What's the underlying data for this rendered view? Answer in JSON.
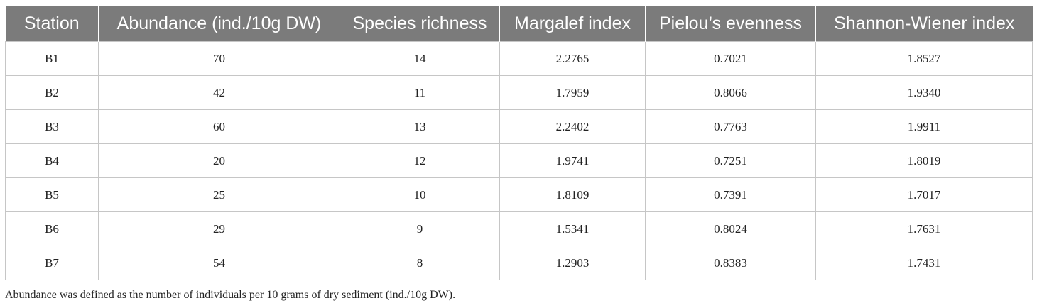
{
  "table": {
    "headers": [
      "Station",
      "Abundance (ind./10g DW)",
      "Species richness",
      "Margalef index",
      "Pielou’s evenness",
      "Shannon-Wiener index"
    ],
    "rows": [
      [
        "B1",
        "70",
        "14",
        "2.2765",
        "0.7021",
        "1.8527"
      ],
      [
        "B2",
        "42",
        "11",
        "1.7959",
        "0.8066",
        "1.9340"
      ],
      [
        "B3",
        "60",
        "13",
        "2.2402",
        "0.7763",
        "1.9911"
      ],
      [
        "B4",
        "20",
        "12",
        "1.9741",
        "0.7251",
        "1.8019"
      ],
      [
        "B5",
        "25",
        "10",
        "1.8109",
        "0.7391",
        "1.7017"
      ],
      [
        "B6",
        "29",
        "9",
        "1.5341",
        "0.8024",
        "1.7631"
      ],
      [
        "B7",
        "54",
        "8",
        "1.2903",
        "0.8383",
        "1.7431"
      ]
    ]
  },
  "footnote": "Abundance was defined as the number of individuals per 10 grams of dry sediment (ind./10g DW).",
  "colors": {
    "header_bg": "#7b7b7b",
    "header_text": "#ffffff",
    "border": "#c6c6c6"
  }
}
